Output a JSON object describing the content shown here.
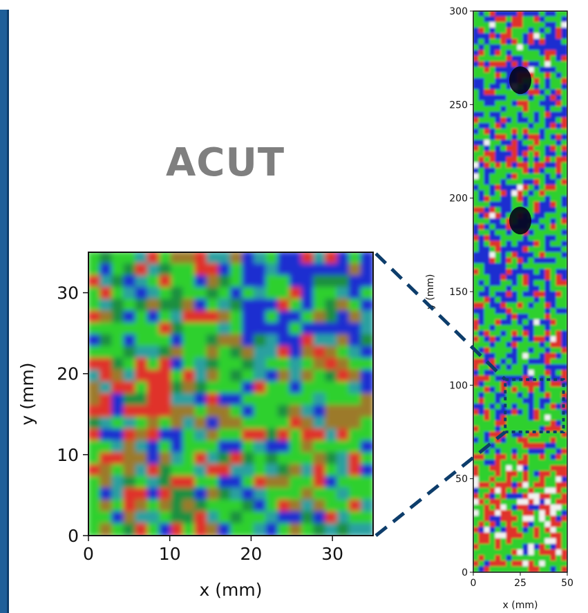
{
  "title": "ACUT",
  "colors": {
    "frame": "#1f5f99",
    "connector": "#0d3d6b",
    "red": "#e0302a",
    "green": "#2fd02f",
    "blue": "#1f2fd0",
    "dark": "#05051a",
    "white": "#f2f2f2"
  },
  "chart_data": [
    {
      "type": "heatmap",
      "role": "zoomed-inset",
      "xlabel": "x (mm)",
      "ylabel": "y (mm)",
      "xlim": [
        0,
        35
      ],
      "ylim": [
        0,
        35
      ],
      "xticks": [
        0,
        10,
        20,
        30
      ],
      "yticks": [
        0,
        10,
        20,
        30
      ],
      "xtick_labels": [
        "0",
        "10",
        "20",
        "30"
      ],
      "ytick_labels": [
        "0",
        "10",
        "20",
        "30"
      ],
      "color_mode": "RGB composite"
    },
    {
      "type": "heatmap",
      "role": "full-scan",
      "xlabel": "x (mm)",
      "ylabel": "y (mm)",
      "xlim": [
        0,
        50
      ],
      "ylim": [
        0,
        300
      ],
      "xticks": [
        0,
        25,
        50
      ],
      "yticks": [
        0,
        50,
        100,
        150,
        200,
        250,
        300
      ],
      "xtick_labels": [
        "0",
        "25",
        "50"
      ],
      "ytick_labels": [
        "0",
        "50",
        "100",
        "150",
        "200",
        "250",
        "300"
      ],
      "dark_spots": [
        {
          "x": 25,
          "y": 263
        },
        {
          "x": 25,
          "y": 188
        }
      ],
      "zoom_region": {
        "x": [
          17,
          48
        ],
        "y": [
          75,
          103
        ]
      },
      "color_mode": "RGB composite"
    }
  ]
}
